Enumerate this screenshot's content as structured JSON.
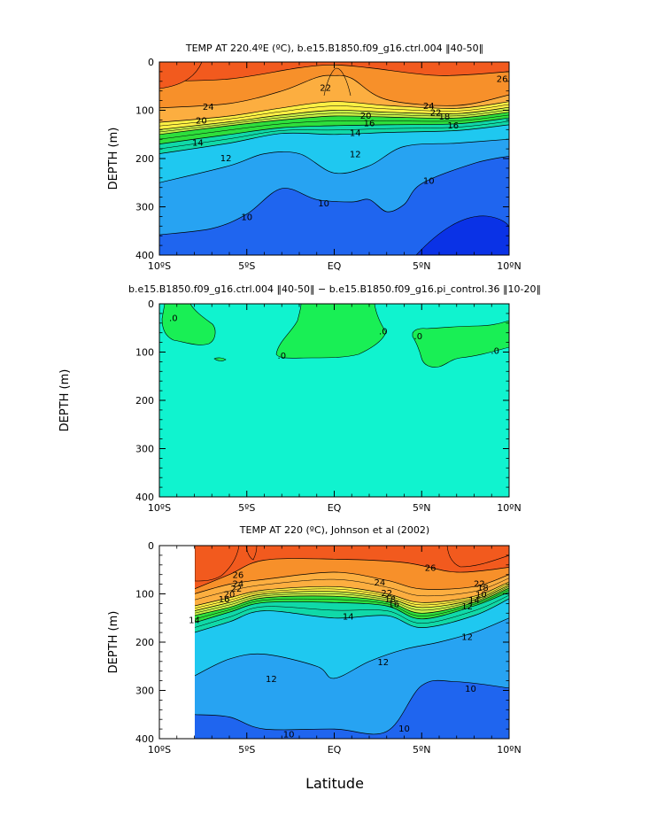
{
  "figure": {
    "xlabel": "Latitude"
  },
  "chart_data": [
    {
      "type": "heatmap",
      "title": "TEMP AT 220.4ºE (ºC), b.e15.B1850.f09_g16.ctrl.004 ‖40-50‖",
      "xlabel": "",
      "ylabel": "DEPTH (m)",
      "xlim": [
        -10,
        10
      ],
      "ylim": [
        400,
        0
      ],
      "xticks": [
        "10ºS",
        "5ºS",
        "EQ",
        "5ºN",
        "10ºN"
      ],
      "yticks": [
        "0",
        "100",
        "200",
        "300",
        "400"
      ],
      "contour_labels": [
        "24",
        "26",
        "24",
        "22",
        "22",
        "20",
        "20",
        "18",
        "16",
        "16",
        "14",
        "14",
        "12",
        "12",
        "10",
        "10",
        "10"
      ],
      "isotherms": [
        {
          "temp": 26,
          "points": [
            [
              -10,
              40
            ],
            [
              -6,
              35
            ],
            [
              -2,
              12
            ],
            [
              0,
              6
            ],
            [
              2,
              12
            ],
            [
              6,
              28
            ],
            [
              10,
              20
            ]
          ]
        },
        {
          "temp": 24,
          "points": [
            [
              -10,
              95
            ],
            [
              -6,
              86
            ],
            [
              -3,
              60
            ],
            [
              -1,
              32
            ],
            [
              0,
              28
            ],
            [
              1,
              34
            ],
            [
              3,
              78
            ],
            [
              7,
              90
            ],
            [
              10,
              68
            ]
          ]
        },
        {
          "temp": 22,
          "points": [
            [
              -10,
              125
            ],
            [
              -6,
              112
            ],
            [
              -3,
              95
            ],
            [
              0,
              82
            ],
            [
              3,
              90
            ],
            [
              7,
              96
            ],
            [
              10,
              82
            ]
          ]
        },
        {
          "temp": 20,
          "points": [
            [
              -10,
              140
            ],
            [
              -6,
              124
            ],
            [
              -3,
              110
            ],
            [
              0,
              100
            ],
            [
              3,
              104
            ],
            [
              7,
              107
            ],
            [
              10,
              94
            ]
          ]
        },
        {
          "temp": 18,
          "points": [
            [
              -10,
              150
            ],
            [
              -6,
              132
            ],
            [
              -3,
              120
            ],
            [
              0,
              112
            ],
            [
              3,
              114
            ],
            [
              7,
              116
            ],
            [
              10,
              104
            ]
          ]
        },
        {
          "temp": 16,
          "points": [
            [
              -10,
              170
            ],
            [
              -6,
              150
            ],
            [
              -3,
              136
            ],
            [
              0,
              132
            ],
            [
              3,
              130
            ],
            [
              7,
              128
            ],
            [
              10,
              116
            ]
          ]
        },
        {
          "temp": 14,
          "points": [
            [
              -10,
              190
            ],
            [
              -6,
              168
            ],
            [
              -3,
              148
            ],
            [
              0,
              150
            ],
            [
              3,
              146
            ],
            [
              7,
              142
            ],
            [
              10,
              130
            ]
          ]
        },
        {
          "temp": 12,
          "points": [
            [
              -10,
              250
            ],
            [
              -6,
              215
            ],
            [
              -4,
              190
            ],
            [
              -2,
              190
            ],
            [
              0,
              230
            ],
            [
              2,
              215
            ],
            [
              4,
              175
            ],
            [
              7,
              168
            ],
            [
              10,
              160
            ]
          ]
        },
        {
          "temp": 10,
          "points": [
            [
              -10,
              358
            ],
            [
              -7,
              345
            ],
            [
              -5,
              315
            ],
            [
              -3,
              262
            ],
            [
              -1,
              285
            ],
            [
              1,
              290
            ],
            [
              2,
              285
            ],
            [
              3,
              310
            ],
            [
              4,
              295
            ],
            [
              5,
              252
            ],
            [
              8,
              210
            ],
            [
              10,
              195
            ]
          ]
        }
      ],
      "colors": {
        "gt26": "#f25a1e",
        "24-26": "#f7902a",
        "22-24": "#fcae40",
        "20-22": "#fff044",
        "18-20": "#c9f047",
        "16-18": "#2edf3c",
        "14-16": "#10d9a8",
        "12-14": "#1fc8f0",
        "10-12": "#27a3f2",
        "lt10": "#1f65ef"
      }
    },
    {
      "type": "heatmap",
      "title": "b.e15.B1850.f09_g16.ctrl.004 ‖40-50‖ − b.e15.B1850.f09_g16.pi_control.36 ‖10-20‖",
      "xlabel": "",
      "ylabel": "DEPTH (m)",
      "xlim": [
        -10,
        10
      ],
      "ylim": [
        400,
        0
      ],
      "xticks": [
        "10ºS",
        "5ºS",
        "EQ",
        "5ºN",
        "10ºN"
      ],
      "yticks": [
        "0",
        "100",
        "200",
        "300",
        "400"
      ],
      "contour_labels": [
        ".0",
        ".0",
        ".0",
        ".0",
        ".0"
      ],
      "colors": {
        "positive": "#19ef55",
        "near_zero": "#10f3cf"
      }
    },
    {
      "type": "heatmap",
      "title": "TEMP AT 220 (ºC), Johnson et al (2002)",
      "xlabel": "Latitude",
      "ylabel": "DEPTH (m)",
      "xlim": [
        -10,
        10
      ],
      "ylim": [
        400,
        0
      ],
      "data_xmin": -8,
      "xticks": [
        "10ºS",
        "5ºS",
        "EQ",
        "5ºN",
        "10ºN"
      ],
      "yticks": [
        "0",
        "100",
        "200",
        "300",
        "400"
      ],
      "contour_labels": [
        "26",
        "26",
        "24",
        "24",
        "22",
        "20",
        "16",
        "22",
        "18",
        "16",
        "14",
        "14",
        "12",
        "12",
        "12",
        "10",
        "10",
        "10",
        "22",
        "18",
        "14",
        "12",
        "10"
      ],
      "isotherms": [
        {
          "temp": 26,
          "points": [
            [
              -8,
              90
            ],
            [
              -6,
              60
            ],
            [
              -4,
              30
            ],
            [
              0,
              28
            ],
            [
              4,
              35
            ],
            [
              7,
              55
            ],
            [
              10,
              45
            ]
          ]
        },
        {
          "temp": 24,
          "points": [
            [
              -8,
              100
            ],
            [
              -6,
              80
            ],
            [
              -4,
              70
            ],
            [
              0,
              55
            ],
            [
              3,
              72
            ],
            [
              5,
              90
            ],
            [
              8,
              85
            ],
            [
              10,
              60
            ]
          ]
        },
        {
          "temp": 22,
          "points": [
            [
              -8,
              125
            ],
            [
              -6,
              108
            ],
            [
              -4,
              92
            ],
            [
              0,
              85
            ],
            [
              3,
              100
            ],
            [
              5,
              118
            ],
            [
              8,
              105
            ],
            [
              10,
              75
            ]
          ]
        },
        {
          "temp": 20,
          "points": [
            [
              -8,
              135
            ],
            [
              -6,
              118
            ],
            [
              -4,
              100
            ],
            [
              0,
              95
            ],
            [
              3,
              108
            ],
            [
              5,
              128
            ],
            [
              8,
              112
            ],
            [
              10,
              82
            ]
          ]
        },
        {
          "temp": 18,
          "points": [
            [
              -8,
              145
            ],
            [
              -6,
              128
            ],
            [
              -4,
              108
            ],
            [
              0,
              105
            ],
            [
              3,
              116
            ],
            [
              5,
              140
            ],
            [
              8,
              118
            ],
            [
              10,
              88
            ]
          ]
        },
        {
          "temp": 16,
          "points": [
            [
              -8,
              160
            ],
            [
              -6,
              138
            ],
            [
              -4,
              118
            ],
            [
              0,
              118
            ],
            [
              3,
              125
            ],
            [
              5,
              152
            ],
            [
              8,
              125
            ],
            [
              10,
              96
            ]
          ]
        },
        {
          "temp": 14,
          "points": [
            [
              -8,
              180
            ],
            [
              -6,
              158
            ],
            [
              -4,
              135
            ],
            [
              0,
              150
            ],
            [
              3,
              145
            ],
            [
              5,
              170
            ],
            [
              8,
              145
            ],
            [
              10,
              110
            ]
          ]
        },
        {
          "temp": 12,
          "points": [
            [
              -8,
              270
            ],
            [
              -6,
              235
            ],
            [
              -4,
              225
            ],
            [
              -1,
              250
            ],
            [
              0,
              275
            ],
            [
              2,
              240
            ],
            [
              4,
              215
            ],
            [
              6,
              200
            ],
            [
              8,
              180
            ],
            [
              10,
              150
            ]
          ]
        },
        {
          "temp": 10,
          "points": [
            [
              -8,
              350
            ],
            [
              -6,
              355
            ],
            [
              -4,
              380
            ],
            [
              0,
              380
            ],
            [
              3,
              385
            ],
            [
              5,
              290
            ],
            [
              7,
              282
            ],
            [
              10,
              295
            ]
          ]
        }
      ],
      "colors": {
        "gt26": "#f25a1e",
        "24-26": "#f7902a",
        "22-24": "#fcae40",
        "20-22": "#fff044",
        "18-20": "#c9f047",
        "16-18": "#2edf3c",
        "14-16": "#10d9a8",
        "12-14": "#1fc8f0",
        "10-12": "#27a3f2",
        "lt10": "#1f65ef"
      }
    }
  ]
}
